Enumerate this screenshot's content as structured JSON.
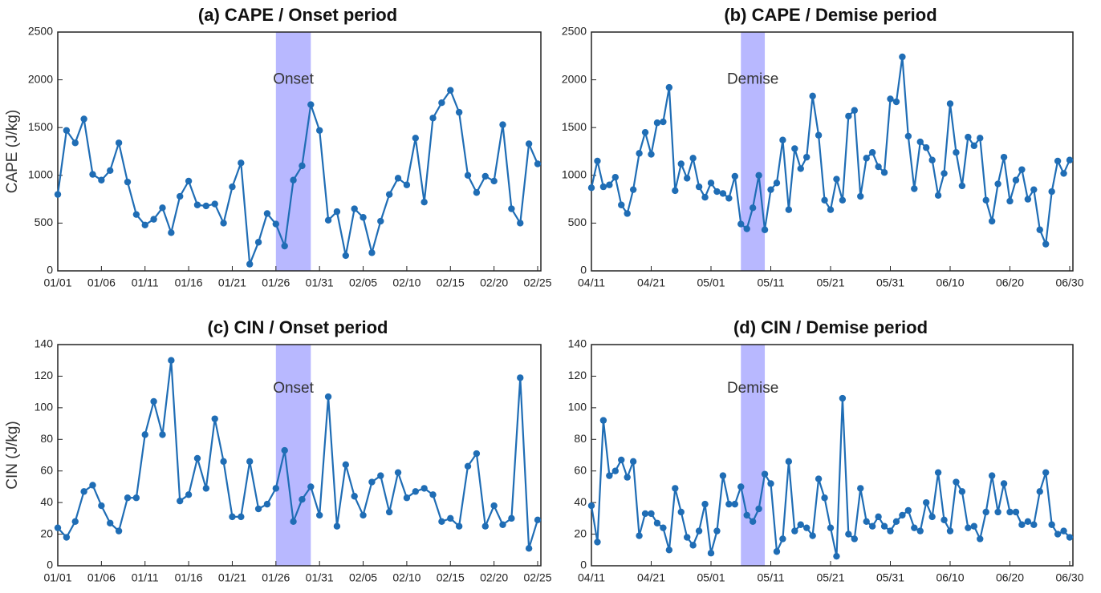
{
  "chart_data": [
    {
      "type": "line",
      "title": "(a) CAPE / Onset period",
      "ylabel": "CAPE  (J/kg)",
      "categories": [
        "01/01",
        null,
        null,
        null,
        null,
        "01/06",
        null,
        null,
        null,
        null,
        "01/11",
        null,
        null,
        null,
        null,
        "01/16",
        null,
        null,
        null,
        null,
        "01/21",
        null,
        null,
        null,
        null,
        "01/26",
        null,
        null,
        null,
        null,
        "01/31",
        null,
        null,
        null,
        null,
        "02/05",
        null,
        null,
        null,
        null,
        "02/10",
        null,
        null,
        null,
        null,
        "02/15",
        null,
        null,
        null,
        null,
        "02/20",
        null,
        null,
        null,
        null,
        "02/25"
      ],
      "values": [
        800,
        1470,
        1340,
        1590,
        1010,
        950,
        1050,
        1340,
        930,
        590,
        480,
        540,
        660,
        400,
        780,
        940,
        690,
        680,
        700,
        500,
        880,
        1130,
        70,
        300,
        600,
        490,
        260,
        950,
        1100,
        1740,
        1470,
        530,
        620,
        160,
        650,
        560,
        190,
        520,
        800,
        970,
        900,
        1390,
        720,
        1600,
        1760,
        1890,
        1660,
        1000,
        820,
        990,
        940,
        1530,
        650,
        500,
        1330,
        1120
      ],
      "color": "#1f6db5",
      "ylim": [
        0,
        2500
      ],
      "yticks": [
        0,
        500,
        1000,
        1500,
        2000,
        2500
      ],
      "shaded_span": [
        25,
        29
      ],
      "shade_color": "#b0b0ff",
      "annotation": "Onset"
    },
    {
      "type": "line",
      "title": "(b) CAPE / Demise period",
      "categories": [
        "04/11",
        null,
        null,
        null,
        null,
        null,
        null,
        null,
        null,
        null,
        "04/21",
        null,
        null,
        null,
        null,
        null,
        null,
        null,
        null,
        null,
        "05/01",
        null,
        null,
        null,
        null,
        null,
        null,
        null,
        null,
        null,
        "05/11",
        null,
        null,
        null,
        null,
        null,
        null,
        null,
        null,
        null,
        "05/21",
        null,
        null,
        null,
        null,
        null,
        null,
        null,
        null,
        null,
        "05/31",
        null,
        null,
        null,
        null,
        null,
        null,
        null,
        null,
        null,
        "06/10",
        null,
        null,
        null,
        null,
        null,
        null,
        null,
        null,
        null,
        "06/20",
        null,
        null,
        null,
        null,
        null,
        null,
        null,
        null,
        null,
        "06/30"
      ],
      "values": [
        870,
        1150,
        880,
        900,
        980,
        690,
        600,
        850,
        1230,
        1450,
        1220,
        1550,
        1560,
        1920,
        840,
        1120,
        970,
        1180,
        880,
        770,
        920,
        830,
        810,
        760,
        990,
        490,
        440,
        660,
        1000,
        430,
        850,
        920,
        1370,
        640,
        1280,
        1070,
        1190,
        1830,
        1420,
        740,
        640,
        960,
        740,
        1620,
        1680,
        780,
        1180,
        1240,
        1090,
        1030,
        1800,
        1770,
        2240,
        1410,
        860,
        1350,
        1290,
        1160,
        790,
        1020,
        1750,
        1240,
        890,
        1400,
        1310,
        1390,
        740,
        520,
        910,
        1190,
        730,
        950,
        1060,
        750,
        850,
        430,
        280,
        830,
        1150,
        1020,
        1160
      ],
      "color": "#1f6db5",
      "ylim": [
        0,
        2500
      ],
      "yticks": [
        0,
        500,
        1000,
        1500,
        2000,
        2500
      ],
      "shaded_span": [
        25,
        29
      ],
      "shade_color": "#b0b0ff",
      "annotation": "Demise"
    },
    {
      "type": "line",
      "title": "(c) CIN / Onset period",
      "ylabel": "CIN  (J/kg)",
      "categories": [
        "01/01",
        null,
        null,
        null,
        null,
        "01/06",
        null,
        null,
        null,
        null,
        "01/11",
        null,
        null,
        null,
        null,
        "01/16",
        null,
        null,
        null,
        null,
        "01/21",
        null,
        null,
        null,
        null,
        "01/26",
        null,
        null,
        null,
        null,
        "01/31",
        null,
        null,
        null,
        null,
        "02/05",
        null,
        null,
        null,
        null,
        "02/10",
        null,
        null,
        null,
        null,
        "02/15",
        null,
        null,
        null,
        null,
        "02/20",
        null,
        null,
        null,
        null,
        "02/25"
      ],
      "values": [
        24,
        18,
        28,
        47,
        51,
        38,
        27,
        22,
        43,
        43,
        83,
        104,
        83,
        130,
        41,
        45,
        68,
        49,
        93,
        66,
        31,
        31,
        66,
        36,
        39,
        49,
        73,
        28,
        42,
        50,
        32,
        107,
        25,
        64,
        44,
        32,
        53,
        57,
        34,
        59,
        43,
        47,
        49,
        45,
        28,
        30,
        25,
        63,
        71,
        25,
        38,
        26,
        30,
        119,
        11,
        29
      ],
      "color": "#1f6db5",
      "ylim": [
        0,
        140
      ],
      "yticks": [
        0,
        20,
        40,
        60,
        80,
        100,
        120,
        140
      ],
      "shaded_span": [
        25,
        29
      ],
      "shade_color": "#b0b0ff",
      "annotation": "Onset"
    },
    {
      "type": "line",
      "title": "(d) CIN / Demise period",
      "categories": [
        "04/11",
        null,
        null,
        null,
        null,
        null,
        null,
        null,
        null,
        null,
        "04/21",
        null,
        null,
        null,
        null,
        null,
        null,
        null,
        null,
        null,
        "05/01",
        null,
        null,
        null,
        null,
        null,
        null,
        null,
        null,
        null,
        "05/11",
        null,
        null,
        null,
        null,
        null,
        null,
        null,
        null,
        null,
        "05/21",
        null,
        null,
        null,
        null,
        null,
        null,
        null,
        null,
        null,
        "05/31",
        null,
        null,
        null,
        null,
        null,
        null,
        null,
        null,
        null,
        "06/10",
        null,
        null,
        null,
        null,
        null,
        null,
        null,
        null,
        null,
        "06/20",
        null,
        null,
        null,
        null,
        null,
        null,
        null,
        null,
        null,
        "06/30"
      ],
      "values": [
        38,
        15,
        92,
        57,
        60,
        67,
        56,
        66,
        19,
        33,
        33,
        27,
        24,
        10,
        49,
        34,
        18,
        13,
        22,
        39,
        8,
        22,
        57,
        39,
        39,
        50,
        32,
        28,
        36,
        58,
        52,
        9,
        17,
        66,
        22,
        26,
        24,
        19,
        55,
        43,
        24,
        6,
        106,
        20,
        17,
        49,
        28,
        25,
        31,
        25,
        22,
        28,
        32,
        35,
        24,
        22,
        40,
        31,
        59,
        29,
        22,
        53,
        47,
        24,
        25,
        17,
        34,
        57,
        34,
        52,
        34,
        34,
        26,
        28,
        26,
        47,
        59,
        26,
        20,
        22,
        18
      ],
      "color": "#1f6db5",
      "ylim": [
        0,
        140
      ],
      "yticks": [
        0,
        20,
        40,
        60,
        80,
        100,
        120,
        140
      ],
      "shaded_span": [
        25,
        29
      ],
      "shade_color": "#b0b0ff",
      "annotation": "Demise"
    }
  ]
}
